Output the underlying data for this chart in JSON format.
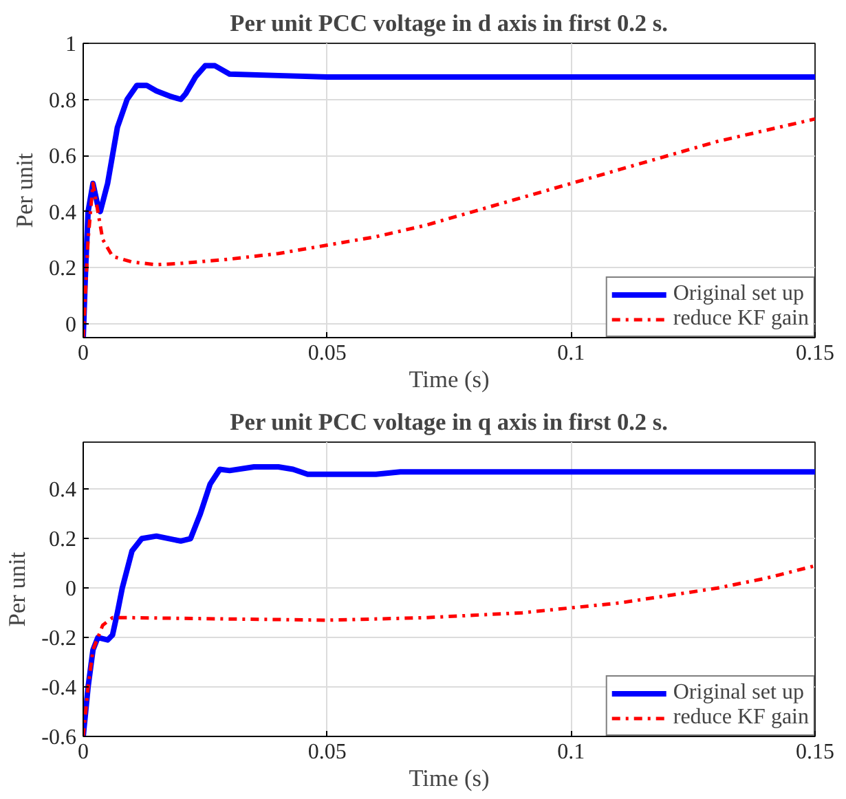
{
  "chart_data": [
    {
      "type": "line",
      "title": "Per unit PCC voltage in d axis in first 0.2 s.",
      "xlabel": "Time (s)",
      "ylabel": "Per unit",
      "xlim": [
        0,
        0.15
      ],
      "xticks": [
        0,
        0.05,
        0.1,
        0.15
      ],
      "ylim": [
        -0.05,
        1
      ],
      "yticks": [
        0,
        0.2,
        0.4,
        0.6,
        0.8,
        1
      ],
      "grid": true,
      "legend": "bottom right",
      "series": [
        {
          "name": "Original set up",
          "color": "#0000ff",
          "line_style": "solid",
          "x": [
            0,
            0.0005,
            0.001,
            0.002,
            0.003,
            0.0035,
            0.005,
            0.007,
            0.009,
            0.011,
            0.013,
            0.015,
            0.018,
            0.02,
            0.021,
            0.023,
            0.025,
            0.027,
            0.03,
            0.04,
            0.05,
            0.06,
            0.1,
            0.15
          ],
          "values": [
            -0.05,
            0.2,
            0.4,
            0.5,
            0.42,
            0.4,
            0.5,
            0.7,
            0.8,
            0.85,
            0.85,
            0.83,
            0.81,
            0.8,
            0.82,
            0.88,
            0.92,
            0.92,
            0.89,
            0.885,
            0.88,
            0.88,
            0.88,
            0.88
          ]
        },
        {
          "name": "reduce KF gain",
          "color": "#ff0000",
          "line_style": "dashdot",
          "x": [
            0,
            0.001,
            0.002,
            0.003,
            0.004,
            0.006,
            0.01,
            0.015,
            0.02,
            0.03,
            0.04,
            0.05,
            0.06,
            0.07,
            0.08,
            0.09,
            0.1,
            0.11,
            0.12,
            0.13,
            0.14,
            0.15
          ],
          "values": [
            -0.05,
            0.3,
            0.5,
            0.4,
            0.3,
            0.24,
            0.22,
            0.21,
            0.215,
            0.23,
            0.25,
            0.28,
            0.31,
            0.35,
            0.4,
            0.45,
            0.5,
            0.55,
            0.6,
            0.65,
            0.69,
            0.73
          ]
        }
      ]
    },
    {
      "type": "line",
      "title": "Per unit PCC voltage in q axis in first 0.2 s.",
      "xlabel": "Time (s)",
      "ylabel": "Per unit",
      "xlim": [
        0,
        0.15
      ],
      "xticks": [
        0,
        0.05,
        0.1,
        0.15
      ],
      "ylim": [
        -0.6,
        0.59
      ],
      "yticks": [
        -0.6,
        -0.4,
        -0.2,
        0,
        0.2,
        0.4
      ],
      "grid": true,
      "legend": "bottom right",
      "series": [
        {
          "name": "Original set up",
          "color": "#0000ff",
          "line_style": "solid",
          "x": [
            0,
            0.001,
            0.002,
            0.003,
            0.005,
            0.006,
            0.007,
            0.008,
            0.01,
            0.012,
            0.015,
            0.02,
            0.022,
            0.024,
            0.026,
            0.028,
            0.03,
            0.035,
            0.04,
            0.043,
            0.046,
            0.055,
            0.06,
            0.065,
            0.1,
            0.15
          ],
          "values": [
            -0.6,
            -0.4,
            -0.25,
            -0.2,
            -0.21,
            -0.19,
            -0.1,
            0.0,
            0.15,
            0.2,
            0.21,
            0.19,
            0.2,
            0.3,
            0.42,
            0.48,
            0.475,
            0.49,
            0.49,
            0.48,
            0.46,
            0.46,
            0.46,
            0.47,
            0.47,
            0.47
          ]
        },
        {
          "name": "reduce KF gain",
          "color": "#ff0000",
          "line_style": "dashdot",
          "x": [
            0,
            0.001,
            0.002,
            0.004,
            0.006,
            0.01,
            0.03,
            0.05,
            0.07,
            0.08,
            0.09,
            0.1,
            0.11,
            0.12,
            0.13,
            0.14,
            0.15
          ],
          "values": [
            -0.6,
            -0.4,
            -0.25,
            -0.15,
            -0.12,
            -0.12,
            -0.125,
            -0.13,
            -0.12,
            -0.11,
            -0.1,
            -0.08,
            -0.06,
            -0.03,
            0.0,
            0.04,
            0.09
          ]
        }
      ]
    }
  ]
}
